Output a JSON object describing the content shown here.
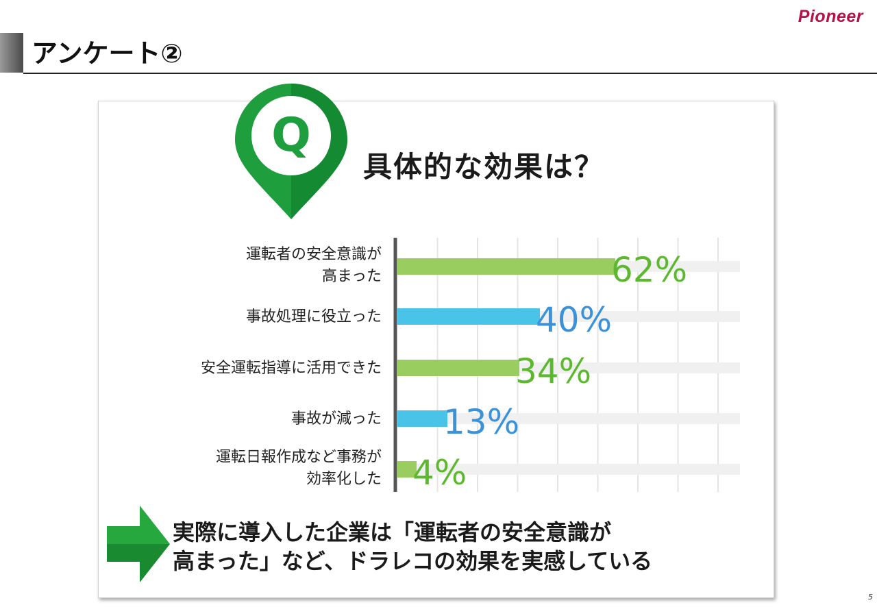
{
  "header": {
    "logo_text": "Pioneer",
    "title": "アンケート②"
  },
  "question": {
    "badge": "Q",
    "text": "具体的な効果は？"
  },
  "chart_data": {
    "type": "bar",
    "orientation": "horizontal",
    "categories": [
      [
        "運転者の安全意識が",
        "高まった"
      ],
      [
        "事故処理に役立った"
      ],
      [
        "安全運転指導に活用できた"
      ],
      [
        "事故が減った"
      ],
      [
        "運転日報作成など事務が",
        "効率化した"
      ]
    ],
    "values": [
      62,
      40,
      34,
      13,
      4
    ],
    "value_labels": [
      "62%",
      "40%",
      "34%",
      "13%",
      "4%"
    ],
    "bar_colors": [
      "#9acd60",
      "#4ac3e8",
      "#9acd60",
      "#4ac3e8",
      "#9acd60"
    ],
    "label_colors": [
      "#5cb82e",
      "#3a92d8",
      "#5cb82e",
      "#3a92d8",
      "#5cb82e"
    ],
    "xlim": [
      0,
      100
    ],
    "grid": true
  },
  "conclusion": {
    "lines": [
      "実際に導入した企業は「運転者の安全意識が",
      "高まった」など、ドラレコの効果を実感している"
    ]
  },
  "footer": {
    "page_number": "5"
  },
  "colors": {
    "brand": "#b5124a",
    "pin_green": "#1e9e3c",
    "arrow_green": "#26a83f"
  }
}
